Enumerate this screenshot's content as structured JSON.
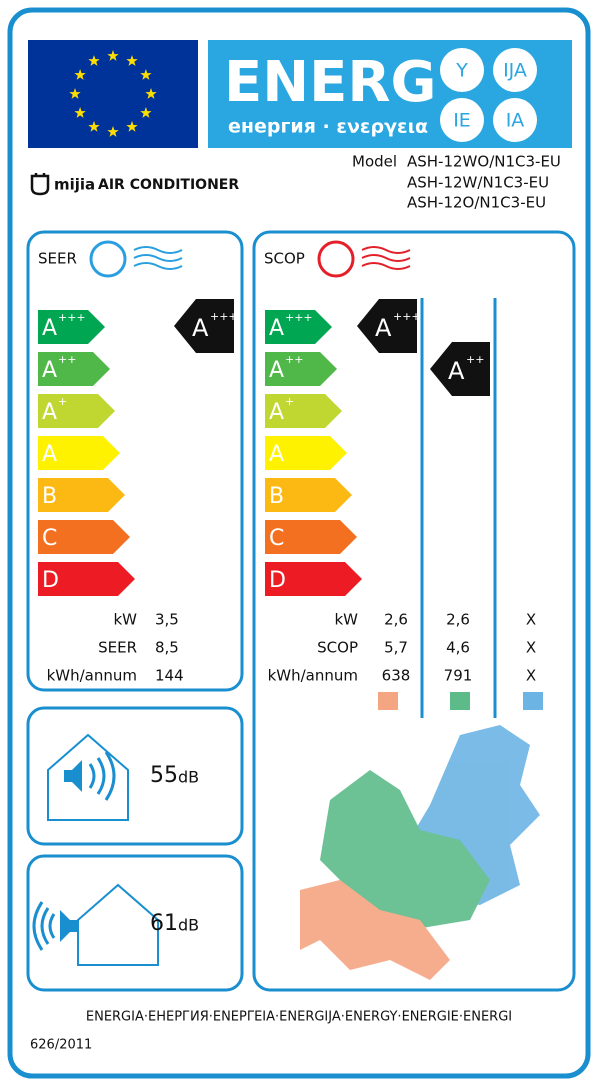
{
  "header": {
    "energ": "ENERG",
    "languages": "енергия · ενεργεια",
    "badges": [
      "Y",
      "IJA",
      "IE",
      "IA"
    ]
  },
  "brand": {
    "logo": "mijia",
    "product": "AIR CONDITIONER"
  },
  "model": {
    "label": "Model",
    "names": [
      "ASH-12WO/N1C3-EU",
      "ASH-12W/N1C3-EU",
      "ASH-12O/N1C3-EU"
    ]
  },
  "classes": [
    {
      "letter": "A",
      "sup": "+++"
    },
    {
      "letter": "A",
      "sup": "++"
    },
    {
      "letter": "A",
      "sup": "+"
    },
    {
      "letter": "A"
    },
    {
      "letter": "B"
    },
    {
      "letter": "C"
    },
    {
      "letter": "D"
    }
  ],
  "seer": {
    "title": "SEER",
    "rating": {
      "letter": "A",
      "sup": "+++"
    },
    "rows": [
      {
        "label": "kW",
        "value": "3,5"
      },
      {
        "label": "SEER",
        "value": "8,5"
      },
      {
        "label": "kWh/annum",
        "value": "144"
      }
    ]
  },
  "scop": {
    "title": "SCOP",
    "ratings": [
      {
        "letter": "A",
        "sup": "+++"
      },
      {
        "letter": "A",
        "sup": "++"
      }
    ],
    "rows": [
      {
        "label": "kW",
        "values": [
          "2,6",
          "2,6",
          "X"
        ]
      },
      {
        "label": "SCOP",
        "values": [
          "5,7",
          "4,6",
          "X"
        ]
      },
      {
        "label": "kWh/annum",
        "values": [
          "638",
          "791",
          "X"
        ]
      }
    ]
  },
  "noise": {
    "indoor": {
      "value": "55",
      "unit": "dB"
    },
    "outdoor": {
      "value": "61",
      "unit": "dB"
    }
  },
  "footer": {
    "languages": "ENERGIA·ЕНЕРГИЯ·ΕΝΕΡΓΕΙΑ·ENERGIJA·ENERGY·ENERGIE·ENERGI",
    "regulation": "626/2011"
  }
}
